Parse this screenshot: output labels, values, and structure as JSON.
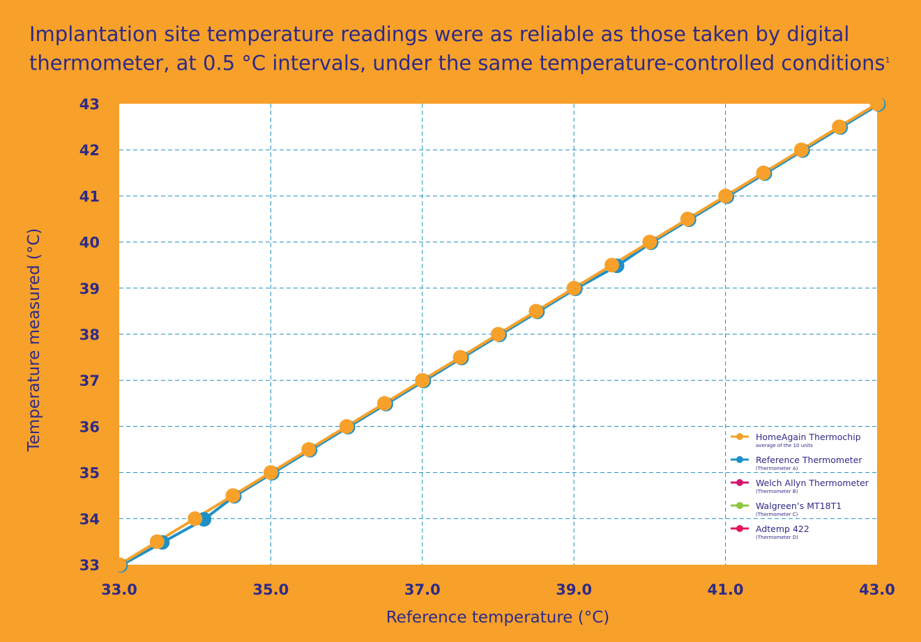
{
  "title": {
    "line1": "Implantation site temperature readings were as reliable as those taken by digital",
    "line2": "thermometer, at 0.5 °C intervals, under the same temperature-controlled conditions",
    "footnote": "1"
  },
  "colors": {
    "background": "#F7A12A",
    "plot_background": "#FFFFFF",
    "text": "#2E2A86",
    "grid": "#1A8FBF",
    "homeagain": "#F7A12A",
    "reference": "#1E90C8",
    "welch_allyn": "#D4146E",
    "walgreens": "#8DC63F",
    "adtemp": "#E3155B"
  },
  "chart_data": {
    "type": "line",
    "xlabel": "Reference temperature (°C)",
    "ylabel": "Temperature measured (°C)",
    "xlim": [
      33.0,
      43.0
    ],
    "ylim": [
      33,
      43
    ],
    "x_ticks": [
      "33.0",
      "35.0",
      "37.0",
      "39.0",
      "41.0",
      "43.0"
    ],
    "x_tick_values": [
      33,
      35,
      37,
      39,
      41,
      43
    ],
    "y_ticks": [
      "33",
      "34",
      "35",
      "36",
      "37",
      "38",
      "39",
      "40",
      "41",
      "42",
      "43"
    ],
    "y_tick_values": [
      33,
      34,
      35,
      36,
      37,
      38,
      39,
      40,
      41,
      42,
      43
    ],
    "grid": true,
    "grid_style": "dashed",
    "x_grid_values": [
      35,
      37,
      39,
      41
    ],
    "legend_position": "bottom-right",
    "series": [
      {
        "name": "Reference Thermometer",
        "subtitle": "(Thermometer A)",
        "color": "#1E90C8",
        "x": [
          33.0,
          33.55,
          34.1,
          34.5,
          35.0,
          35.5,
          36.0,
          36.5,
          37.0,
          37.5,
          38.0,
          38.5,
          39.0,
          39.55,
          40.0,
          40.5,
          41.0,
          41.5,
          42.0,
          42.5,
          43.0
        ],
        "y": [
          33.0,
          33.5,
          34.0,
          34.5,
          35.0,
          35.5,
          36.0,
          36.5,
          37.0,
          37.5,
          38.0,
          38.5,
          39.0,
          39.5,
          40.0,
          40.5,
          41.0,
          41.5,
          42.0,
          42.5,
          43.0
        ]
      },
      {
        "name": "HomeAgain Thermochip",
        "subtitle": "average of the 10 units",
        "color": "#F7A12A",
        "x": [
          33.0,
          33.5,
          34.0,
          34.5,
          35.0,
          35.5,
          36.0,
          36.5,
          37.0,
          37.5,
          38.0,
          38.5,
          39.0,
          39.5,
          40.0,
          40.5,
          41.0,
          41.5,
          42.0,
          42.5,
          43.0
        ],
        "y": [
          33.0,
          33.5,
          34.0,
          34.5,
          35.0,
          35.5,
          36.0,
          36.5,
          37.0,
          37.5,
          38.0,
          38.5,
          39.0,
          39.5,
          40.0,
          40.5,
          41.0,
          41.5,
          42.0,
          42.5,
          43.0
        ]
      }
    ],
    "legend": [
      {
        "name": "HomeAgain Thermochip",
        "subtitle": "average of the 10 units",
        "color": "#F7A12A"
      },
      {
        "name": "Reference Thermometer",
        "subtitle": "(Thermometer A)",
        "color": "#1E90C8"
      },
      {
        "name": "Welch Allyn Thermometer",
        "subtitle": "(Thermometer B)",
        "color": "#D4146E"
      },
      {
        "name": "Walgreen’s MT18T1",
        "subtitle": "(Thermometer C)",
        "color": "#8DC63F"
      },
      {
        "name": "Adtemp 422",
        "subtitle": "(Thermometer D)",
        "color": "#E3155B"
      }
    ]
  }
}
